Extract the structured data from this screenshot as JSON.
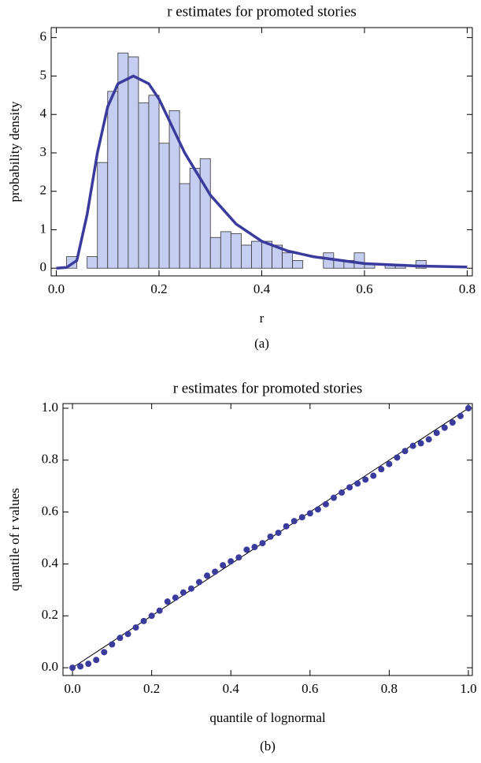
{
  "chart_data": [
    {
      "type": "histogram",
      "title": "r estimates for promoted stories",
      "xlabel": "r",
      "ylabel": "probability density",
      "caption": "(a)",
      "bins": [
        0.02,
        0.04,
        0.06,
        0.08,
        0.1,
        0.12,
        0.14,
        0.16,
        0.18,
        0.2,
        0.22,
        0.24,
        0.26,
        0.28,
        0.3,
        0.32,
        0.34,
        0.36,
        0.38,
        0.4,
        0.42,
        0.44,
        0.46,
        0.48,
        0.5,
        0.52,
        0.54,
        0.56,
        0.58,
        0.6,
        0.62,
        0.64,
        0.66,
        0.68,
        0.7,
        0.72
      ],
      "values": [
        0.3,
        0,
        0.3,
        2.75,
        4.6,
        5.6,
        5.5,
        4.3,
        4.5,
        3.25,
        4.1,
        2.2,
        2.6,
        2.85,
        0.8,
        0.95,
        0.9,
        0.6,
        0.7,
        0.7,
        0.6,
        0.4,
        0.2,
        0,
        0,
        0.4,
        0.2,
        0.2,
        0.4,
        0.1,
        0,
        0.1,
        0.1,
        0,
        0.2
      ],
      "color": "#c5cdf0",
      "curve": {
        "x": [
          0,
          0.02,
          0.04,
          0.06,
          0.08,
          0.1,
          0.12,
          0.15,
          0.18,
          0.2,
          0.25,
          0.3,
          0.35,
          0.4,
          0.45,
          0.5,
          0.6,
          0.7,
          0.8
        ],
        "values": [
          0,
          0.02,
          0.2,
          1.4,
          3.0,
          4.2,
          4.8,
          5.0,
          4.8,
          4.4,
          3.0,
          1.9,
          1.15,
          0.7,
          0.45,
          0.3,
          0.12,
          0.06,
          0.03
        ],
        "color": "#3b3b9e"
      },
      "xlim": [
        -0.01,
        0.81
      ],
      "ylim": [
        -0.2,
        6.26
      ],
      "xticks": [
        {
          "value": 0,
          "label": "0.0"
        },
        0.2,
        0.4,
        0.6,
        0.8
      ],
      "yticks": [
        0,
        1,
        2,
        3,
        4,
        5,
        6
      ]
    },
    {
      "type": "scatter",
      "title": "r estimates for promoted stories",
      "xlabel": "quantile of lognormal",
      "ylabel": "quantile of  r values",
      "caption": "(b)",
      "x": [
        0,
        0.02,
        0.04,
        0.06,
        0.08,
        0.1,
        0.12,
        0.14,
        0.16,
        0.18,
        0.2,
        0.22,
        0.24,
        0.26,
        0.28,
        0.3,
        0.32,
        0.34,
        0.36,
        0.38,
        0.4,
        0.42,
        0.44,
        0.46,
        0.48,
        0.5,
        0.52,
        0.54,
        0.56,
        0.58,
        0.6,
        0.62,
        0.64,
        0.66,
        0.68,
        0.7,
        0.72,
        0.74,
        0.76,
        0.78,
        0.8,
        0.82,
        0.84,
        0.86,
        0.88,
        0.9,
        0.92,
        0.94,
        0.96,
        0.98,
        1.0
      ],
      "values": [
        0,
        0.005,
        0.015,
        0.03,
        0.06,
        0.09,
        0.115,
        0.13,
        0.155,
        0.18,
        0.2,
        0.22,
        0.255,
        0.27,
        0.29,
        0.305,
        0.33,
        0.355,
        0.37,
        0.395,
        0.41,
        0.425,
        0.455,
        0.465,
        0.48,
        0.505,
        0.52,
        0.545,
        0.565,
        0.58,
        0.595,
        0.61,
        0.63,
        0.655,
        0.675,
        0.695,
        0.71,
        0.725,
        0.74,
        0.765,
        0.785,
        0.81,
        0.835,
        0.855,
        0.865,
        0.88,
        0.905,
        0.925,
        0.945,
        0.97,
        1.0
      ],
      "color": "#3b3b9e",
      "reference_line": {
        "x": [
          0,
          0.5,
          1
        ],
        "values": [
          0,
          0.5,
          1
        ],
        "color": "#000000"
      },
      "xlim": [
        -0.024,
        1.01
      ],
      "ylim": [
        -0.03,
        1.018
      ],
      "xticks": [
        {
          "value": 0,
          "label": "0.0"
        },
        0.2,
        0.4,
        0.6,
        0.8,
        {
          "value": 1,
          "label": "1.0"
        }
      ],
      "yticks": [
        {
          "value": 0,
          "label": "0.0"
        },
        0.2,
        0.4,
        0.6,
        0.8,
        {
          "value": 1,
          "label": "1.0"
        }
      ]
    }
  ]
}
